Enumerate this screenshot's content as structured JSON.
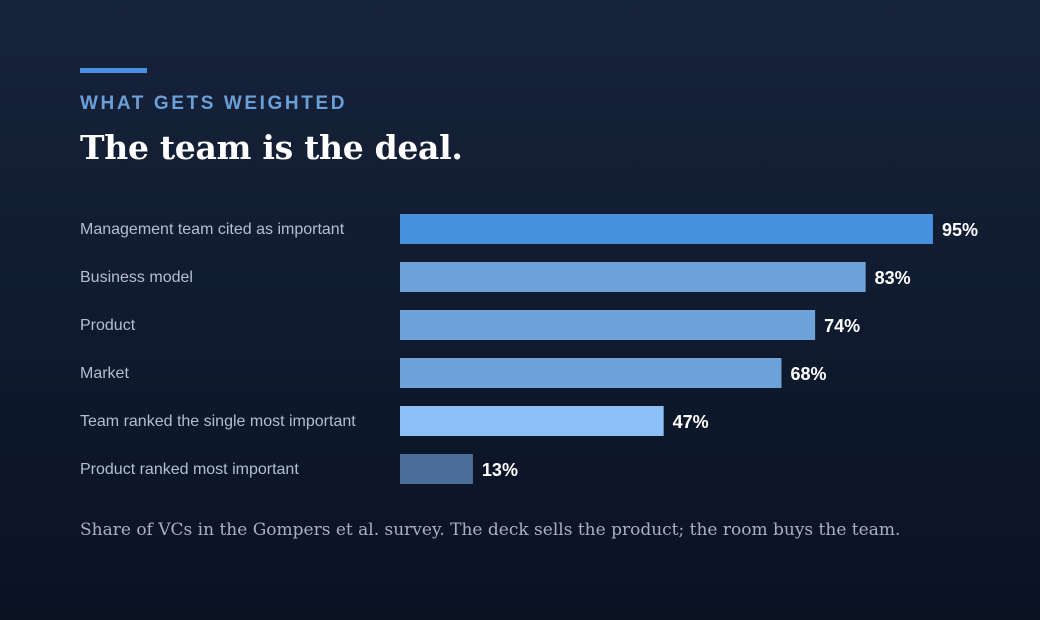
{
  "eyebrow": "WHAT GETS WEIGHTED",
  "title": "The team is the deal.",
  "caption": "Share of VCs in the Gompers et al. survey. The deck sells the product; the room buys the team.",
  "colors": {
    "accent": "#4a90e2",
    "highlight_bar": "#4690de",
    "standard_bar": "#6ea3da",
    "light_bar": "#8cc0f7",
    "muted_bar": "#4a6d9a"
  },
  "chart_data": {
    "type": "bar",
    "orientation": "horizontal",
    "categories": [
      "Management team cited as important",
      "Business model",
      "Product",
      "Market",
      "Team ranked the single most important",
      "Product ranked most important"
    ],
    "values": [
      95,
      83,
      74,
      68,
      47,
      13
    ],
    "value_labels": [
      "95%",
      "83%",
      "74%",
      "68%",
      "47%",
      "13%"
    ],
    "bar_colors": [
      "#4690de",
      "#6ea3da",
      "#6ea3da",
      "#6ea3da",
      "#8cc0f7",
      "#4a6d9a"
    ],
    "xlim": [
      0,
      100
    ],
    "grid": false,
    "legend": false
  }
}
